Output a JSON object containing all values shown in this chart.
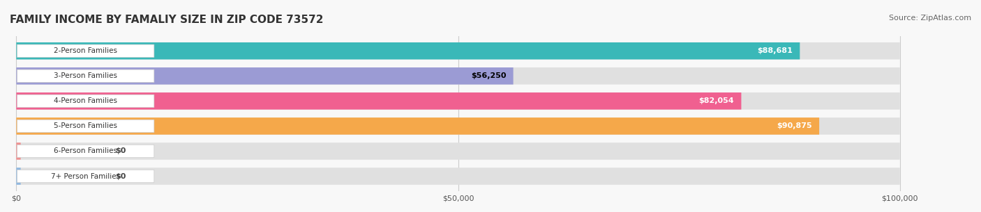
{
  "title": "FAMILY INCOME BY FAMALIY SIZE IN ZIP CODE 73572",
  "source": "Source: ZipAtlas.com",
  "categories": [
    "2-Person Families",
    "3-Person Families",
    "4-Person Families",
    "5-Person Families",
    "6-Person Families",
    "7+ Person Families"
  ],
  "values": [
    88681,
    56250,
    82054,
    90875,
    0,
    0
  ],
  "bar_colors": [
    "#3ab8b8",
    "#9b9bd4",
    "#f06090",
    "#f5a84a",
    "#f09090",
    "#90b8e0"
  ],
  "label_colors": [
    "white",
    "black",
    "white",
    "white",
    "black",
    "black"
  ],
  "xlim": [
    0,
    100000
  ],
  "xticks": [
    0,
    50000,
    100000
  ],
  "xtick_labels": [
    "$0",
    "$50,000",
    "$100,000"
  ],
  "background_color": "#f0f0f0",
  "bar_bg_color": "#e8e8e8",
  "title_fontsize": 11,
  "source_fontsize": 8,
  "bar_label_fontsize": 8,
  "category_fontsize": 7.5,
  "figsize": [
    14.06,
    3.05
  ],
  "dpi": 100
}
